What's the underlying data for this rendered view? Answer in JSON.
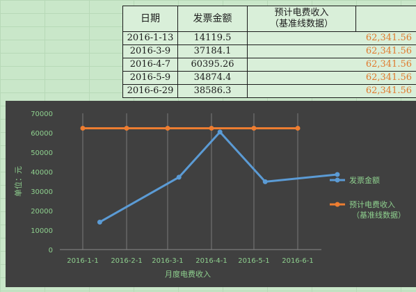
{
  "table": {
    "headers": {
      "date": "日期",
      "amount": "发票金额",
      "base_line1": "预计电费收入",
      "base_line2": "（基准线数据）"
    },
    "rows": [
      {
        "date": "2016-1-13",
        "amount": "14119.5",
        "base": "62,341.56"
      },
      {
        "date": "2016-3-9",
        "amount": "37184.1",
        "base": "62,341.56"
      },
      {
        "date": "2016-4-7",
        "amount": "60395.26",
        "base": "62,341.56"
      },
      {
        "date": "2016-5-9",
        "amount": "34874.4",
        "base": "62,341.56"
      },
      {
        "date": "2016-6-29",
        "amount": "38586.3",
        "base": "62,341.56"
      }
    ]
  },
  "chart_data": {
    "type": "line",
    "categories": [
      "2016-1-1",
      "2016-2-1",
      "2016-3-1",
      "2016-4-1",
      "2016-5-1",
      "2016-6-1"
    ],
    "y_ticks": [
      "0",
      "10000",
      "20000",
      "30000",
      "40000",
      "50000",
      "60000",
      "70000"
    ],
    "ylim": [
      0,
      70000
    ],
    "xlabel": "月度电费收入",
    "ylabel": "单位：元",
    "grid": "vertical",
    "legend_position": "right",
    "series": [
      {
        "name": "发票金额",
        "color": "#5b9bd5",
        "points": [
          {
            "x": "2016-1-13",
            "y": 14119.5
          },
          {
            "x": "2016-3-9",
            "y": 37184.1
          },
          {
            "x": "2016-4-7",
            "y": 60395.26
          },
          {
            "x": "2016-5-9",
            "y": 34874.4
          },
          {
            "x": "2016-6-29",
            "y": 38586.3
          }
        ]
      },
      {
        "name_line1": "预计电费收入",
        "name_line2": "（基准线数据）",
        "color": "#ed7d31",
        "points": [
          {
            "x": "2016-1-1",
            "y": 62341.56
          },
          {
            "x": "2016-2-1",
            "y": 62341.56
          },
          {
            "x": "2016-3-1",
            "y": 62341.56
          },
          {
            "x": "2016-4-1",
            "y": 62341.56
          },
          {
            "x": "2016-5-1",
            "y": 62341.56
          },
          {
            "x": "2016-6-1",
            "y": 62341.56
          }
        ]
      }
    ],
    "axis_text_color": "#8ed08e"
  }
}
